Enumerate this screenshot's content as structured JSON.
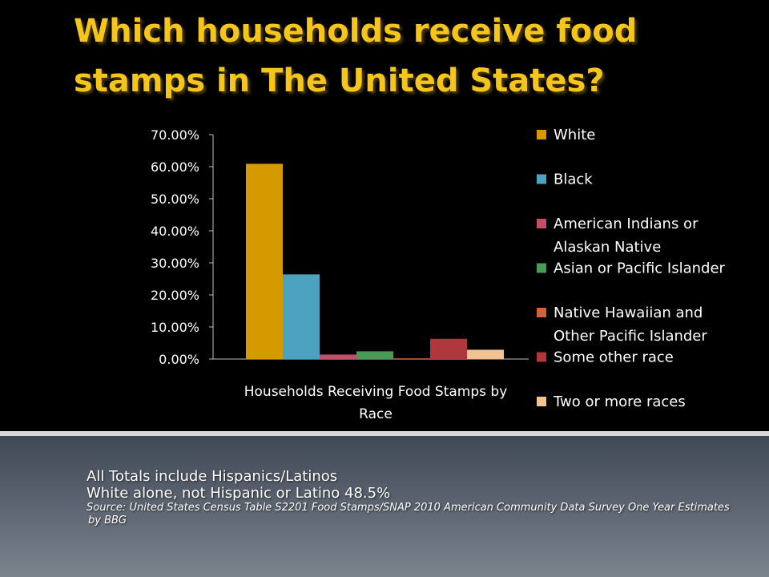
{
  "slide": {
    "title": "Which households receive food stamps  in The United States?"
  },
  "notes": {
    "line1": "All Totals include Hispanics/Latinos",
    "line2": "White alone, not Hispanic or Latino 48.5%",
    "source": "Source: United States Census Table S2201 Food Stamps/SNAP 2010 American Community Data Survey One Year Estimates",
    "byline": "by BBG"
  },
  "chart_data": {
    "type": "bar",
    "categories": [
      "Households Receiving Food Stamps by Race"
    ],
    "xlabel_lines": [
      "Households Receiving Food Stamps by",
      "Race"
    ],
    "ylim": [
      0,
      70
    ],
    "yticks": [
      0,
      10,
      20,
      30,
      40,
      50,
      60,
      70
    ],
    "ytick_labels": [
      "0.00%",
      "10.00%",
      "20.00%",
      "30.00%",
      "40.00%",
      "50.00%",
      "60.00%",
      "70.00%"
    ],
    "grid": false,
    "legend_position": "right",
    "series": [
      {
        "name": "White",
        "label_lines": [
          "White"
        ],
        "values": [
          60.9
        ],
        "color": "#d49a00"
      },
      {
        "name": "Black",
        "label_lines": [
          "Black"
        ],
        "values": [
          26.4
        ],
        "color": "#4ba3bf"
      },
      {
        "name": "American Indians or Alaskan Native",
        "label_lines": [
          "American Indians or",
          "Alaskan Native"
        ],
        "values": [
          1.4
        ],
        "color": "#c0506a"
      },
      {
        "name": "Asian or Pacific Islander",
        "label_lines": [
          "Asian or Pacific Islander"
        ],
        "values": [
          2.4
        ],
        "color": "#4b9a55"
      },
      {
        "name": "Native Hawaiian and Other Pacific Islander",
        "label_lines": [
          "Native Hawaiian and",
          "Other Pacific Islander"
        ],
        "values": [
          0.2
        ],
        "color": "#d0623c"
      },
      {
        "name": "Some other race",
        "label_lines": [
          "Some other race"
        ],
        "values": [
          6.3
        ],
        "color": "#b0373c"
      },
      {
        "name": "Two or more races",
        "label_lines": [
          "Two or more races"
        ],
        "values": [
          2.9
        ],
        "color": "#f2c292"
      }
    ]
  }
}
